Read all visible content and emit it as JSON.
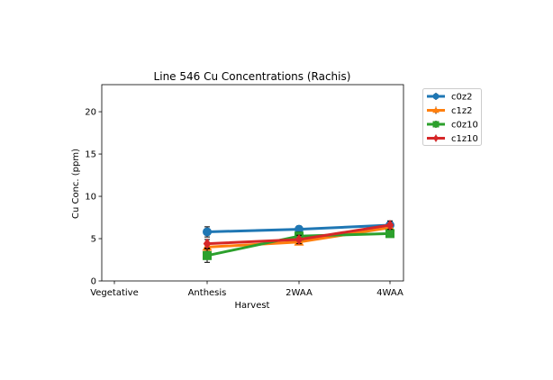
{
  "chart_data": {
    "type": "line",
    "title": "Line 546 Cu Concentrations (Rachis)",
    "xlabel": "Harvest",
    "ylabel": "Cu Conc. (ppm)",
    "categories": [
      "Vegetative",
      "Anthesis",
      "2WAA",
      "4WAA"
    ],
    "ylim": [
      0,
      23.2
    ],
    "yticks": [
      0,
      5,
      10,
      15,
      20
    ],
    "grid": false,
    "legend_position": "outside-top-right",
    "series": [
      {
        "name": "c0z2",
        "color": "#1f77b4",
        "marker": "circle",
        "values": [
          null,
          5.8,
          6.1,
          6.6
        ],
        "errors": [
          null,
          0.6,
          0.4,
          0.3
        ]
      },
      {
        "name": "c1z2",
        "color": "#ff7f0e",
        "marker": "triangle-up",
        "values": [
          null,
          4.0,
          4.6,
          6.3
        ],
        "errors": [
          null,
          0.4,
          0.3,
          0.3
        ]
      },
      {
        "name": "c0z10",
        "color": "#2ca02c",
        "marker": "square",
        "values": [
          null,
          3.0,
          5.3,
          5.6
        ],
        "errors": [
          null,
          0.8,
          0.5,
          0.3
        ]
      },
      {
        "name": "c1z10",
        "color": "#d62728",
        "marker": "diamond",
        "values": [
          null,
          4.4,
          4.9,
          6.6
        ],
        "errors": [
          null,
          0.5,
          0.5,
          0.5
        ]
      }
    ]
  }
}
